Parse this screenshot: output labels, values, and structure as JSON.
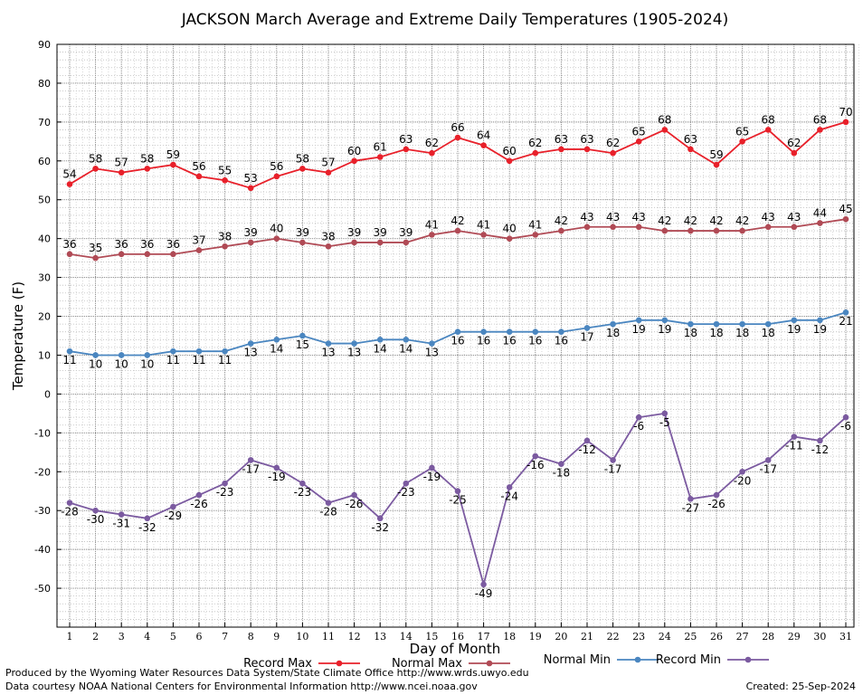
{
  "chart_data": {
    "type": "line",
    "title": "JACKSON March Average and Extreme Daily Temperatures (1905-2024)",
    "xlabel": "Day of Month",
    "ylabel": "Temperature (F)",
    "ylim": [
      -60,
      90
    ],
    "yticks": [
      -50,
      -40,
      -30,
      -20,
      -10,
      0,
      10,
      20,
      30,
      40,
      50,
      60,
      70,
      80,
      90
    ],
    "xlim": [
      1,
      31
    ],
    "x": [
      1,
      2,
      3,
      4,
      5,
      6,
      7,
      8,
      9,
      10,
      11,
      12,
      13,
      14,
      15,
      16,
      17,
      18,
      19,
      20,
      21,
      22,
      23,
      24,
      25,
      26,
      27,
      28,
      29,
      30,
      31
    ],
    "grid": true,
    "legend": "bottom",
    "series": [
      {
        "name": "Record Max",
        "color": "#e8202a",
        "label_pos": "above",
        "values": [
          54,
          58,
          57,
          58,
          59,
          56,
          55,
          53,
          56,
          58,
          57,
          60,
          61,
          63,
          62,
          66,
          64,
          60,
          62,
          63,
          63,
          62,
          65,
          68,
          63,
          59,
          65,
          68,
          62,
          68,
          70
        ]
      },
      {
        "name": "Normal Max",
        "color": "#b04a55",
        "label_pos": "above",
        "values": [
          36,
          35,
          36,
          36,
          36,
          37,
          38,
          39,
          40,
          39,
          38,
          39,
          39,
          39,
          41,
          42,
          41,
          40,
          41,
          42,
          43,
          43,
          43,
          42,
          42,
          42,
          42,
          43,
          43,
          44,
          45
        ]
      },
      {
        "name": "Normal Min",
        "color": "#4a86c0",
        "label_pos": "below",
        "values": [
          11,
          10,
          10,
          10,
          11,
          11,
          11,
          13,
          14,
          15,
          13,
          13,
          14,
          14,
          13,
          16,
          16,
          16,
          16,
          16,
          17,
          18,
          19,
          19,
          18,
          18,
          18,
          18,
          19,
          19,
          21
        ]
      },
      {
        "name": "Record Min",
        "color": "#7b5aa0",
        "label_pos": "below",
        "values": [
          -28,
          -30,
          -31,
          -32,
          -29,
          -26,
          -23,
          -17,
          -19,
          -23,
          -28,
          -26,
          -32,
          -23,
          -19,
          -25,
          -49,
          -24,
          -16,
          -18,
          -12,
          -17,
          -6,
          -5,
          -27,
          -26,
          -20,
          -17,
          -11,
          -12,
          -6
        ]
      }
    ]
  },
  "footer": {
    "credit_1": "Produced by the Wyoming Water Resources Data System/State Climate Office http://www.wrds.uwyo.edu",
    "credit_2": "Data courtesy NOAA National Centers for Environmental Information http://www.ncei.noaa.gov",
    "created": "Created:  25-Sep-2024"
  }
}
